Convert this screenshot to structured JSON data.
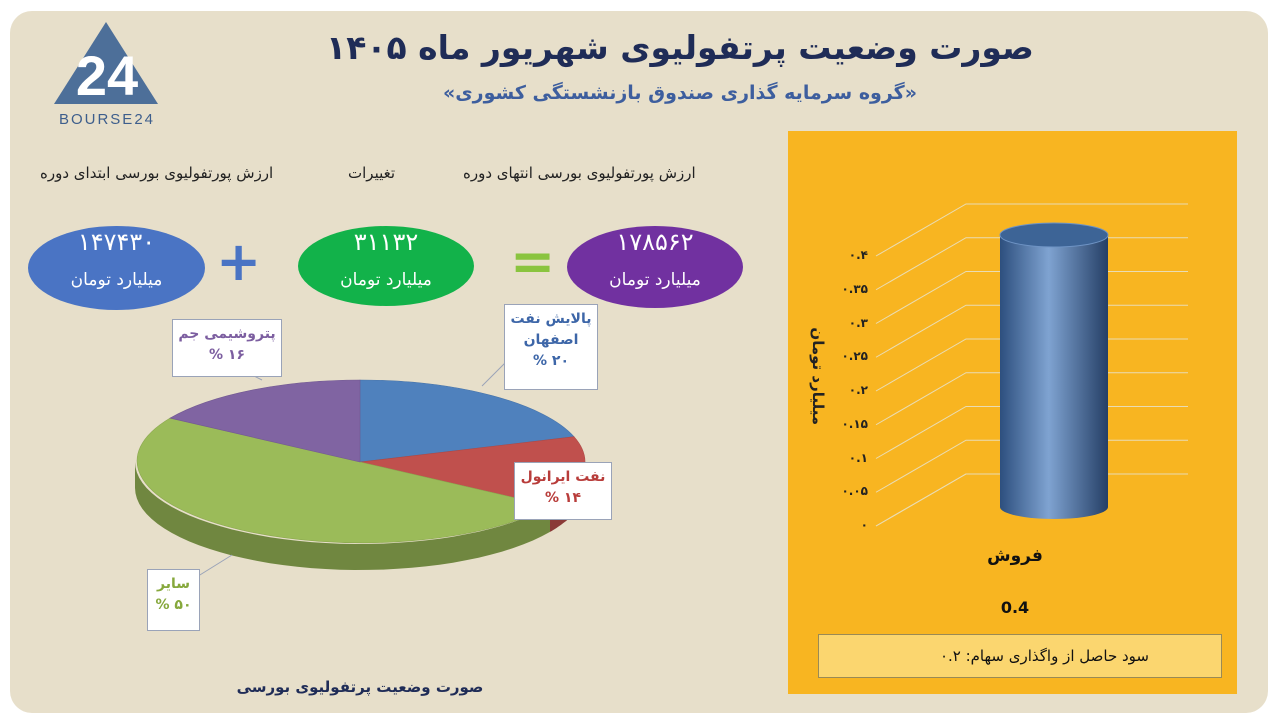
{
  "header": {
    "title": "صورت وضعیت پرتفولیوی شهریور ماه ۱۴۰۵",
    "subtitle": "«گروه سرمایه گذاری صندوق بازنشستگی کشوری»"
  },
  "logo": {
    "mark": "24",
    "text": "BOURSE24"
  },
  "summary": {
    "start_label": "ارزش پورتفولیوی بورسی ابتدای دوره",
    "change_label": "تغییرات",
    "end_label": "ارزش پورتفولیوی بورسی انتهای دوره",
    "start_value": "۱۴۷۴۳۰",
    "change_value": "۳۱۱۳۲",
    "end_value": "۱۷۸۵۶۲",
    "unit": "میلیارد تومان",
    "plus": "+",
    "equals": "=",
    "colors": {
      "start": "#4a74c4",
      "change": "#12b24a",
      "end": "#7131a0"
    }
  },
  "chart_data": [
    {
      "type": "pie",
      "title": "صورت وضعیت پرتفولیوی بورسی",
      "slices": [
        {
          "label": "پالایش نفت اصفهان",
          "value": 20,
          "display": "۲۰ %",
          "color": "#4f81bd"
        },
        {
          "label": "نفت ایرانول",
          "value": 14,
          "display": "۱۴ %",
          "color": "#c0504d"
        },
        {
          "label": "سایر",
          "value": 50,
          "display": "۵۰ %",
          "color": "#9bbb59"
        },
        {
          "label": "پتروشیمی جم",
          "value": 16,
          "display": "۱۶ %",
          "color": "#8064a2"
        }
      ]
    },
    {
      "type": "bar",
      "categories": [
        "فروش"
      ],
      "values": [
        0.4
      ],
      "value_labels": [
        "0.4"
      ],
      "ylabel": "میلیارد تومان",
      "ylim": [
        0,
        0.4
      ],
      "yticks": [
        "۰",
        "۰.۰۵",
        "۰.۱",
        "۰.۱۵",
        "۰.۲",
        "۰.۲۵",
        "۰.۳",
        "۰.۳۵",
        "۰.۴"
      ],
      "grid": true,
      "bar_color": "#4f73a8",
      "background": "#f8b521"
    }
  ],
  "note": {
    "text": "سود حاصل از واگذاری سهام: ۰.۲"
  }
}
